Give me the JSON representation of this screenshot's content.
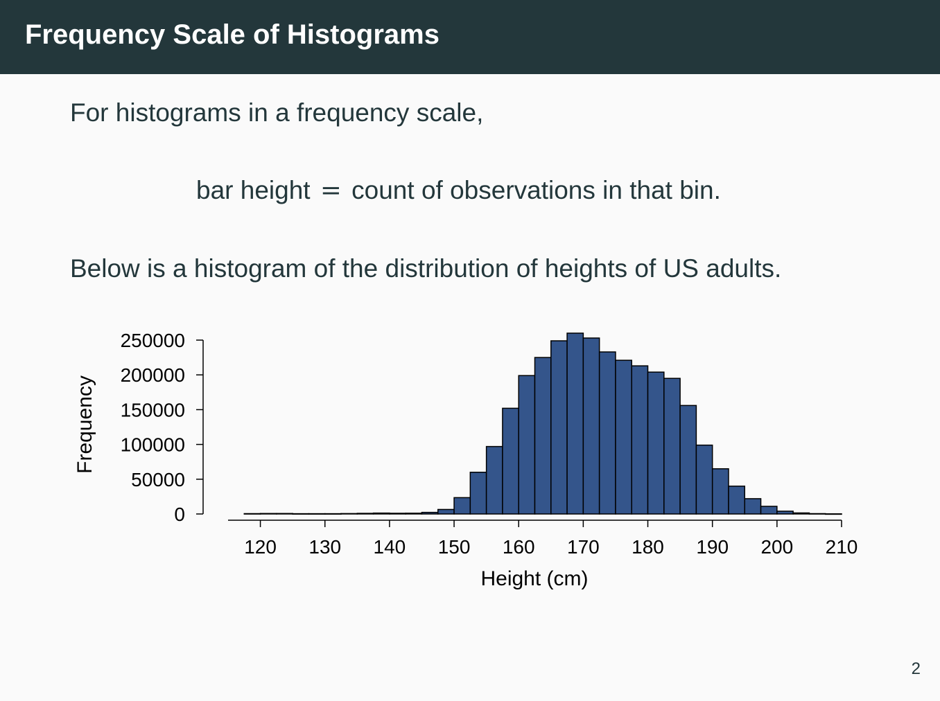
{
  "slide": {
    "title": "Frequency Scale of Histograms",
    "intro": "For histograms in a frequency scale,",
    "formula_lhs": "bar height",
    "formula_eq": "=",
    "formula_rhs": "count of observations in that bin.",
    "below": "Below is a histogram of the distribution of heights of US adults.",
    "page_number": "2"
  },
  "chart_data": {
    "type": "bar",
    "xlabel": "Height (cm)",
    "ylabel": "Frequency",
    "xlim": [
      115,
      210
    ],
    "ylim": [
      0,
      250000
    ],
    "x_ticks": [
      120,
      130,
      140,
      150,
      160,
      170,
      180,
      190,
      200,
      210
    ],
    "y_ticks": [
      0,
      50000,
      100000,
      150000,
      200000,
      250000
    ],
    "bin_width": 2.5,
    "bins_start": [
      117.5,
      120,
      122.5,
      125,
      127.5,
      130,
      132.5,
      135,
      137.5,
      140,
      142.5,
      145,
      147.5,
      150,
      152.5,
      155,
      157.5,
      160,
      162.5,
      165,
      167.5,
      170,
      172.5,
      175,
      177.5,
      180,
      182.5,
      185,
      187.5,
      190,
      192.5,
      195,
      197.5,
      200,
      202.5,
      205,
      207.5
    ],
    "values": [
      500,
      700,
      700,
      400,
      400,
      400,
      600,
      900,
      1300,
      1000,
      1100,
      2300,
      6500,
      23500,
      60000,
      97000,
      152000,
      199000,
      225000,
      249000,
      260000,
      253000,
      233000,
      221000,
      213000,
      204000,
      195000,
      156000,
      99000,
      65000,
      40000,
      22000,
      11000,
      4000,
      1500,
      500,
      200
    ],
    "bar_color": "#34558b",
    "bar_edge_color": "#000000",
    "grid": false
  }
}
